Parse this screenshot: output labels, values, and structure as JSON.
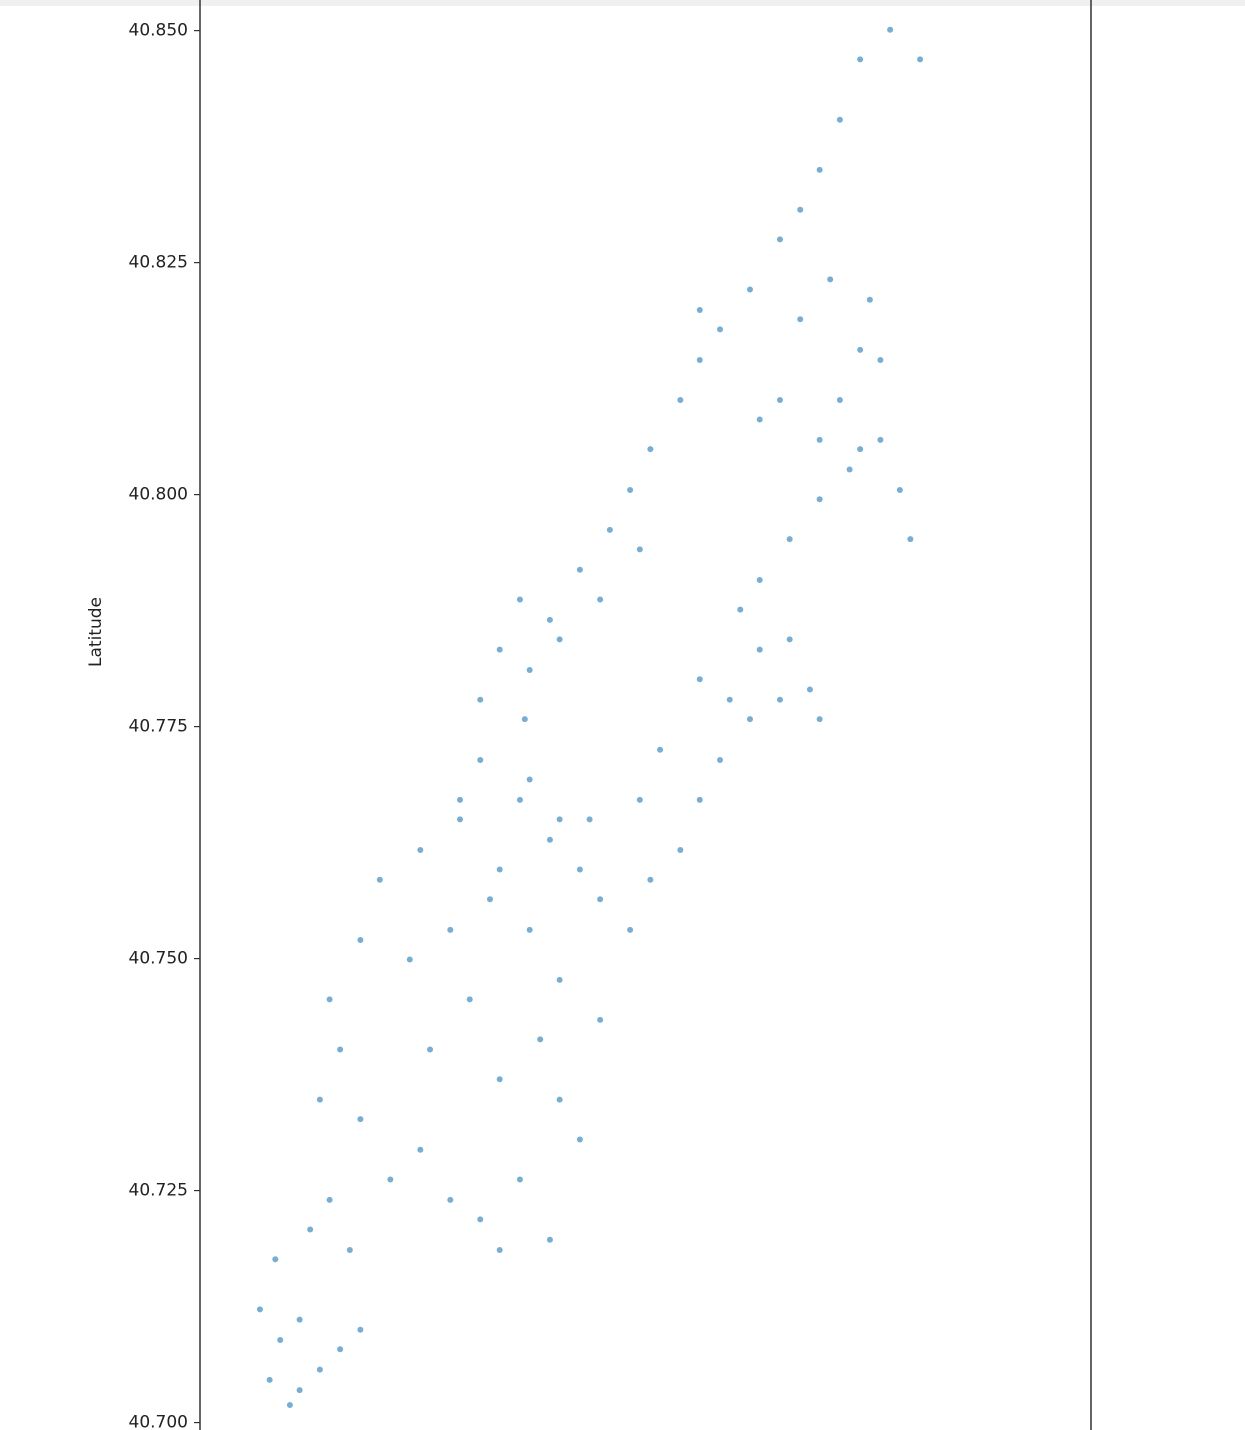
{
  "chart_data": {
    "type": "scatter",
    "y_label": "Latitude",
    "color": "#1f77b4",
    "xlim": [
      -74.03,
      -73.92
    ],
    "ylim": [
      40.6992,
      40.8533
    ],
    "yticks": [
      {
        "value": 40.7,
        "label": "40.700"
      },
      {
        "value": 40.725,
        "label": "40.725"
      },
      {
        "value": 40.75,
        "label": "40.750"
      },
      {
        "value": 40.775,
        "label": "40.775"
      },
      {
        "value": 40.8,
        "label": "40.800"
      },
      {
        "value": 40.825,
        "label": "40.825"
      },
      {
        "value": 40.85,
        "label": "40.850"
      }
    ],
    "x": [
      -74.0189,
      -74.0214,
      -74.0177,
      -74.0152,
      -74.0201,
      -74.0226,
      -74.0177,
      -74.0127,
      -74.0102,
      -74.0207,
      -74.0164,
      -74.014,
      -74.0115,
      -74.0152,
      -74.0127,
      -74.014,
      -74.0102,
      -74.0065,
      -74.0028,
      -73.9991,
      -73.9954,
      -73.993,
      -73.9905,
      -73.9868,
      -73.9831,
      -74.0016,
      -73.9967,
      -73.993,
      -73.988,
      -73.9856,
      -74.0041,
      -73.9991,
      -73.9942,
      -74.0102,
      -74.0078,
      -74.0028,
      -73.9979,
      -73.993,
      -73.9893,
      -73.9856,
      -73.9806,
      -73.9905,
      -73.9868,
      -73.9831,
      -73.9806,
      -73.9769,
      -73.9856,
      -73.9819,
      -73.9744,
      -73.9707,
      -73.9683,
      -73.9658,
      -73.9621,
      -73.9584,
      -73.9547,
      -73.9535,
      -73.9609,
      -73.9633,
      -73.9683,
      -73.9732,
      -73.9757,
      -73.9646,
      -73.9572,
      -73.9893,
      -73.9899,
      -73.9893,
      -73.9868,
      -73.9831,
      -73.9794,
      -73.9769,
      -73.9744,
      -73.9707,
      -73.9683,
      -73.9658,
      -73.9621,
      -73.9584,
      -73.9559,
      -73.9535,
      -73.951,
      -73.9485,
      -73.9954,
      -73.993,
      -73.9905,
      -73.9856,
      -73.9806,
      -73.9757,
      -73.9954,
      -73.9979,
      -73.9609,
      -73.9572,
      -73.9535,
      -73.9498,
      -73.946,
      -73.9436,
      -73.9423,
      -73.951,
      -73.9485,
      -73.9473,
      -73.946,
      -73.9522,
      -73.9559,
      -73.9584,
      -73.9609,
      -73.9535,
      -73.9448,
      -73.9411,
      -73.9683,
      -73.9485
    ],
    "values": [
      40.7019,
      40.7046,
      40.7035,
      40.7057,
      40.7089,
      40.7122,
      40.7111,
      40.7079,
      40.71,
      40.7176,
      40.7208,
      40.724,
      40.7186,
      40.7348,
      40.7402,
      40.7456,
      40.7327,
      40.7262,
      40.7294,
      40.724,
      40.7219,
      40.7186,
      40.7262,
      40.7197,
      40.7305,
      40.7402,
      40.7456,
      40.737,
      40.7413,
      40.7348,
      40.7499,
      40.7531,
      40.7564,
      40.752,
      40.7585,
      40.7617,
      40.765,
      40.7596,
      40.7531,
      40.7477,
      40.7434,
      40.7671,
      40.7628,
      40.7596,
      40.7564,
      40.7531,
      40.765,
      40.765,
      40.7585,
      40.7617,
      40.7671,
      40.7714,
      40.7758,
      40.7779,
      40.779,
      40.7758,
      40.7833,
      40.7876,
      40.7801,
      40.7725,
      40.7671,
      40.7779,
      40.7844,
      40.7693,
      40.7758,
      40.7811,
      40.7865,
      40.7919,
      40.7962,
      40.8005,
      40.8049,
      40.8102,
      40.8145,
      40.8178,
      40.8221,
      40.8275,
      40.8307,
      40.835,
      40.8404,
      40.8469,
      40.7779,
      40.7833,
      40.7887,
      40.7844,
      40.7887,
      40.7941,
      40.7714,
      40.7671,
      40.7908,
      40.7952,
      40.7995,
      40.8027,
      40.8059,
      40.8005,
      40.7952,
      40.8102,
      40.8156,
      40.821,
      40.8145,
      40.8232,
      40.8189,
      40.8102,
      40.8081,
      40.8059,
      40.8501,
      40.8469,
      40.8199,
      40.8049
    ]
  }
}
